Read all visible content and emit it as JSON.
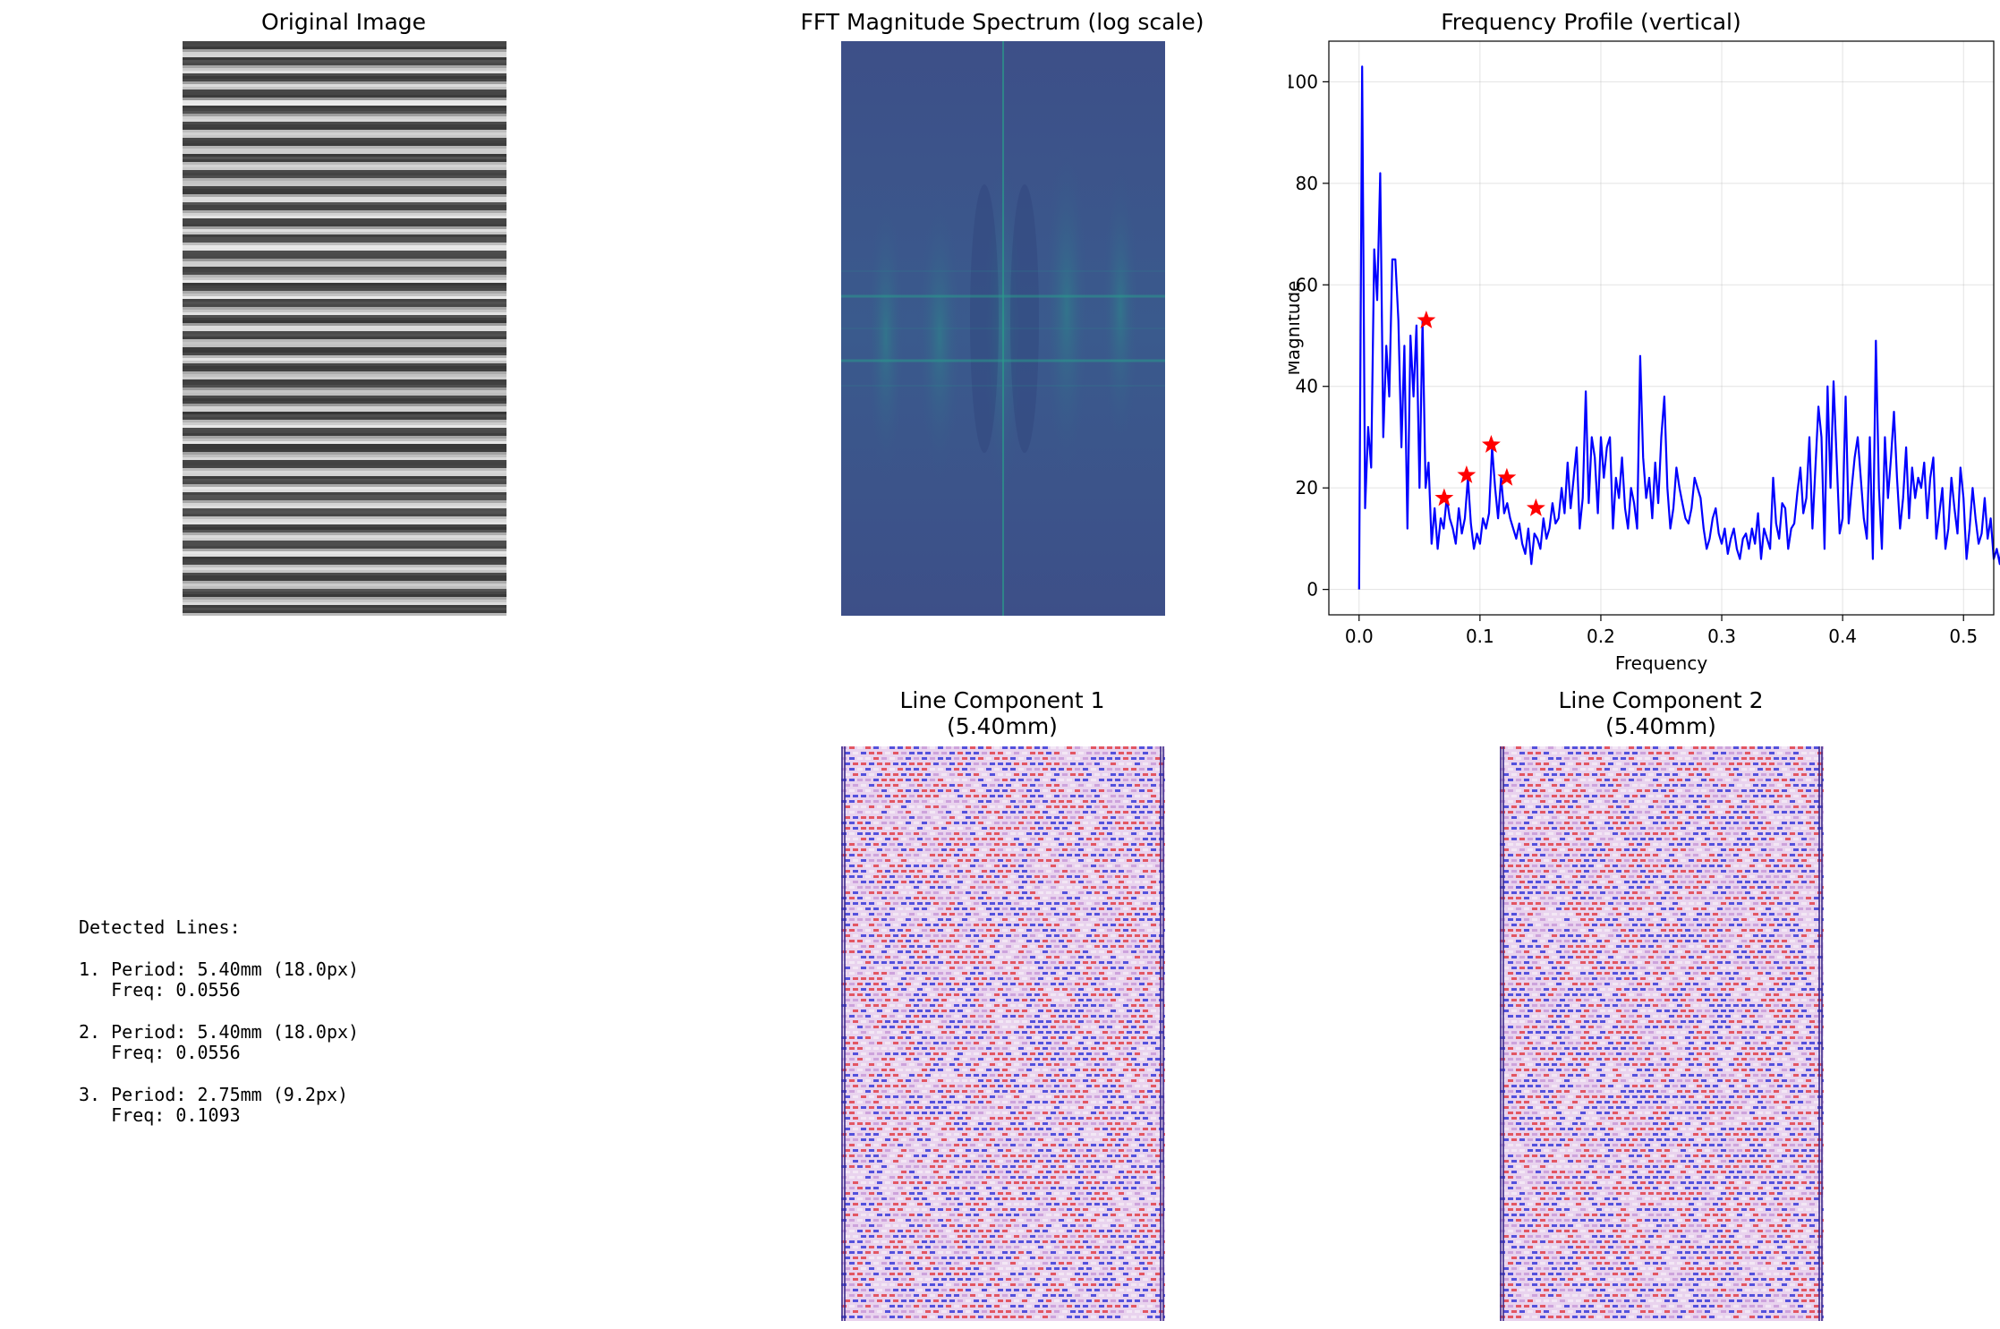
{
  "panels": {
    "original": {
      "title": "Original Image"
    },
    "fft": {
      "title": "FFT Magnitude Spectrum (log scale)"
    },
    "profile": {
      "title": "Frequency Profile (vertical)"
    },
    "component1": {
      "title_line1": "Line Component 1",
      "title_line2": "(5.40mm)"
    },
    "component2": {
      "title_line1": "Line Component 2",
      "title_line2": "(5.40mm)"
    }
  },
  "detected": {
    "heading": "Detected Lines:",
    "items": [
      {
        "line1": "1. Period: 5.40mm (18.0px)",
        "line2": "   Freq: 0.0556"
      },
      {
        "line1": "2. Period: 5.40mm (18.0px)",
        "line2": "   Freq: 0.0556"
      },
      {
        "line1": "3. Period: 2.75mm (9.2px)",
        "line2": "   Freq: 0.1093"
      }
    ]
  },
  "colors": {
    "line": "#0000ff",
    "peak_marker": "#ff0000",
    "fft_background": "#3b528b",
    "fft_highlight": "#21918c"
  },
  "chart_data": {
    "type": "line",
    "title": "Frequency Profile (vertical)",
    "xlabel": "Frequency",
    "ylabel": "Magnitude",
    "xlim": [
      -0.025,
      0.525
    ],
    "ylim": [
      -5,
      108
    ],
    "xticks": [
      0.0,
      0.1,
      0.2,
      0.3,
      0.4,
      0.5
    ],
    "xtick_labels": [
      "0.0",
      "0.1",
      "0.2",
      "0.3",
      "0.4",
      "0.5"
    ],
    "yticks": [
      0,
      20,
      40,
      60,
      80,
      100
    ],
    "ytick_labels": [
      "0",
      "20",
      "40",
      "60",
      "80",
      "100"
    ],
    "grid": true,
    "series": [
      {
        "x_start": 0.0,
        "x_step": 0.0025,
        "values": [
          0,
          103,
          16,
          32,
          24,
          67,
          57,
          82,
          30,
          48,
          38,
          65,
          65,
          53,
          28,
          48,
          12,
          50,
          38,
          52,
          20,
          53,
          20,
          25,
          9,
          16,
          8,
          14,
          12,
          18,
          14,
          12,
          9,
          16,
          11,
          14,
          22,
          13,
          8,
          11,
          9,
          14,
          12,
          15,
          28,
          20,
          14,
          22,
          15,
          17,
          14,
          12,
          10,
          13,
          9,
          7,
          12,
          5,
          11,
          10,
          8,
          14,
          10,
          12,
          17,
          13,
          14,
          20,
          15,
          25,
          16,
          22,
          28,
          12,
          18,
          39,
          17,
          30,
          26,
          15,
          30,
          22,
          28,
          30,
          12,
          22,
          18,
          26,
          16,
          12,
          20,
          17,
          12,
          46,
          26,
          18,
          22,
          14,
          25,
          17,
          30,
          38,
          20,
          12,
          16,
          24,
          20,
          17,
          14,
          13,
          16,
          22,
          20,
          18,
          12,
          8,
          10,
          14,
          16,
          11,
          9,
          12,
          7,
          10,
          12,
          8,
          6,
          10,
          11,
          8,
          12,
          9,
          15,
          6,
          12,
          10,
          8,
          22,
          13,
          10,
          17,
          16,
          8,
          12,
          13,
          19,
          24,
          15,
          18,
          30,
          12,
          24,
          36,
          30,
          8,
          40,
          20,
          41,
          26,
          11,
          14,
          38,
          13,
          20,
          26,
          30,
          22,
          14,
          10,
          30,
          6,
          49,
          20,
          8,
          30,
          18,
          26,
          35,
          22,
          12,
          18,
          28,
          14,
          24,
          18,
          22,
          20,
          25,
          14,
          22,
          26,
          10,
          15,
          20,
          8,
          12,
          22,
          16,
          11,
          24,
          18,
          6,
          12,
          20,
          14,
          9,
          11,
          18,
          10,
          14,
          6,
          8,
          5,
          11,
          6,
          5
        ]
      }
    ],
    "peaks": [
      {
        "x": 0.0556,
        "y": 53
      },
      {
        "x": 0.0704,
        "y": 18
      },
      {
        "x": 0.0889,
        "y": 22.5
      },
      {
        "x": 0.1093,
        "y": 28.5
      },
      {
        "x": 0.1222,
        "y": 22
      },
      {
        "x": 0.1463,
        "y": 16
      }
    ]
  }
}
